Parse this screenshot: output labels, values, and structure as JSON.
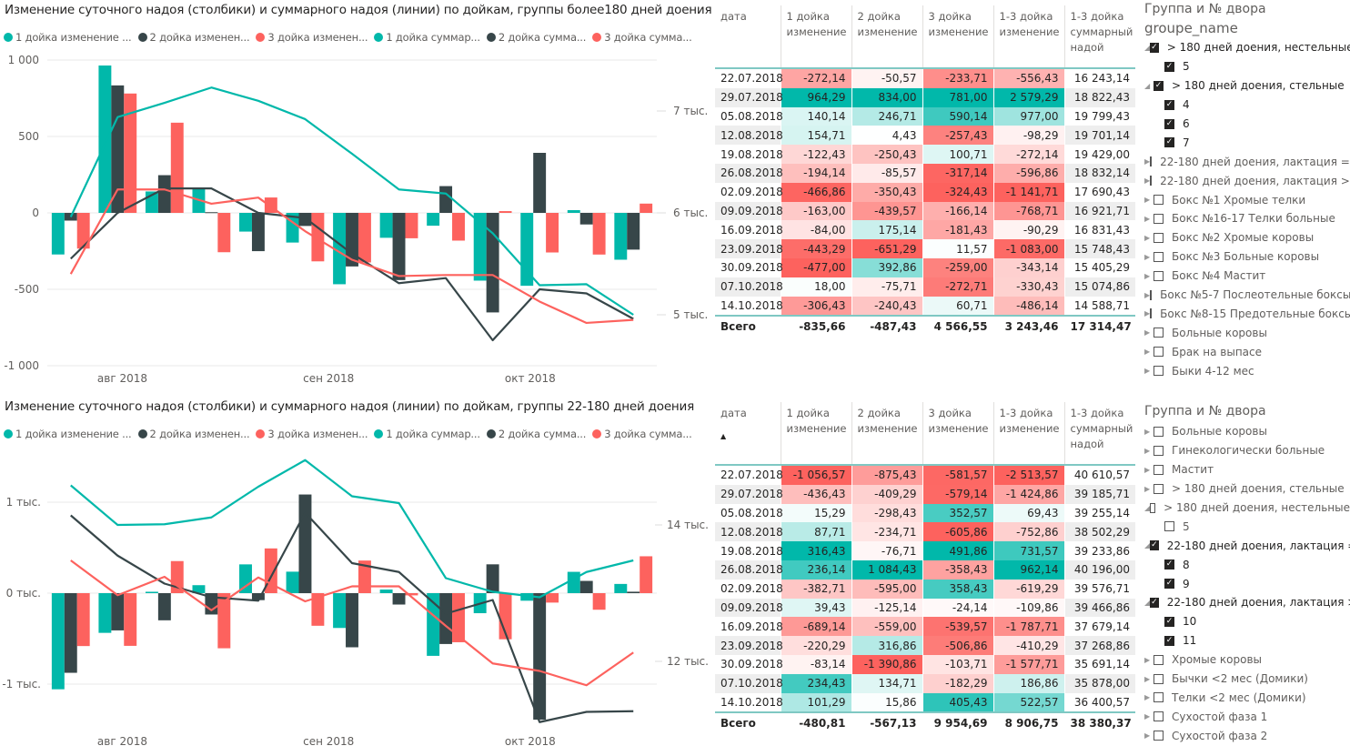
{
  "colors": {
    "teal": "#01b8aa",
    "dark": "#374649",
    "red": "#fd625e",
    "grid": "#eeeeee",
    "axis_text": "#605e5c"
  },
  "legend": [
    {
      "label": "1 дойка изменение ...",
      "color": "#01b8aa"
    },
    {
      "label": "2 дойка изменен...",
      "color": "#374649"
    },
    {
      "label": "3 дойка изменен...",
      "color": "#fd625e"
    },
    {
      "label": "1 дойка суммар...",
      "color": "#01b8aa"
    },
    {
      "label": "2 дойка сумма...",
      "color": "#374649"
    },
    {
      "label": "3 дойка сумма...",
      "color": "#fd625e"
    }
  ],
  "chart_data": [
    {
      "type": "bar",
      "title": "Изменение суточного надоя (столбики) и суммарного надоя (линии) по дойкам, группы более180 дней доения",
      "x": [
        "22.07.2018",
        "29.07.2018",
        "05.08.2018",
        "12.08.2018",
        "19.08.2018",
        "26.08.2018",
        "02.09.2018",
        "09.09.2018",
        "16.09.2018",
        "23.09.2018",
        "30.09.2018",
        "07.10.2018",
        "14.10.2018"
      ],
      "x_tick_labels": [
        {
          "label": "авг 2018",
          "index": 1.6
        },
        {
          "label": "сен 2018",
          "index": 6.0
        },
        {
          "label": "окт 2018",
          "index": 10.3
        }
      ],
      "y_left": {
        "ticks": [
          1000,
          500,
          0,
          -500,
          -1000
        ],
        "tick_labels": [
          "1 000",
          "500",
          "0",
          "-500",
          "-1 000"
        ],
        "range": [
          -1000,
          1000
        ]
      },
      "y_right": {
        "ticks": [
          7000,
          6000,
          5000
        ],
        "tick_labels": [
          "7 тыс.",
          "6 тыс.",
          "5 тыс."
        ],
        "range": [
          4500,
          7500
        ]
      },
      "bar_series": [
        {
          "name": "1 дойка изменение",
          "values": [
            -272.14,
            964.29,
            140.14,
            154.71,
            -122.43,
            -194.14,
            -466.86,
            -163.0,
            -84.0,
            -443.29,
            -477.0,
            18.0,
            -306.43
          ]
        },
        {
          "name": "2 дойка изменение",
          "values": [
            -50.57,
            834.0,
            246.71,
            4.43,
            -250.43,
            -85.57,
            -350.43,
            -439.57,
            175.14,
            -651.29,
            392.86,
            -75.71,
            -240.43
          ]
        },
        {
          "name": "3 дойка изменение",
          "values": [
            -233.71,
            781.0,
            590.14,
            -257.43,
            100.71,
            -317.14,
            -324.43,
            -166.14,
            -181.43,
            11.57,
            -259.0,
            -272.71,
            60.71
          ]
        }
      ],
      "line_series": [
        {
          "name": "1 дойка суммарный",
          "values": [
            5960,
            6940,
            7080,
            7230,
            7100,
            6920,
            6580,
            6230,
            6190,
            5800,
            5290,
            5300,
            5000
          ]
        },
        {
          "name": "2 дойка суммарный",
          "values": [
            5550,
            6000,
            6240,
            6240,
            6000,
            5950,
            5600,
            5310,
            5360,
            4750,
            5250,
            5210,
            4960
          ]
        },
        {
          "name": "3 дойка суммарный",
          "values": [
            5400,
            6230,
            6230,
            6090,
            6150,
            5820,
            5540,
            5380,
            5390,
            5390,
            5130,
            4920,
            4950
          ]
        }
      ]
    },
    {
      "type": "bar",
      "title": "Изменение суточного надоя (столбики) и суммарного надоя (линии) по дойкам, группы 22-180 дней доения",
      "x": [
        "22.07.2018",
        "29.07.2018",
        "05.08.2018",
        "12.08.2018",
        "19.08.2018",
        "26.08.2018",
        "02.09.2018",
        "09.09.2018",
        "16.09.2018",
        "23.09.2018",
        "30.09.2018",
        "07.10.2018",
        "14.10.2018"
      ],
      "x_tick_labels": [
        {
          "label": "авг 2018",
          "index": 1.6
        },
        {
          "label": "сен 2018",
          "index": 6.0
        },
        {
          "label": "окт 2018",
          "index": 10.3
        }
      ],
      "y_left": {
        "ticks": [
          1000,
          0,
          -1000
        ],
        "tick_labels": [
          "1 тыс.",
          "0 тыс.",
          "-1 тыс."
        ],
        "range": [
          -1400,
          1400
        ]
      },
      "y_right": {
        "ticks": [
          14000,
          12000
        ],
        "tick_labels": [
          "14 тыс.",
          "12 тыс."
        ],
        "range": [
          10800,
          15400
        ]
      },
      "bar_series": [
        {
          "name": "1 дойка изменение",
          "values": [
            -1056.57,
            -436.43,
            15.29,
            87.71,
            316.43,
            236.14,
            -382.71,
            39.43,
            -689.14,
            -220.29,
            -83.14,
            234.43,
            101.29
          ]
        },
        {
          "name": "2 дойка изменение",
          "values": [
            -875.43,
            -409.29,
            -298.43,
            -234.71,
            -76.71,
            1084.43,
            -595.0,
            -125.14,
            -559.0,
            316.86,
            -1390.86,
            134.71,
            15.86
          ]
        },
        {
          "name": "3 дойка изменение",
          "values": [
            -581.57,
            -579.14,
            352.57,
            -605.86,
            491.86,
            -358.43,
            358.43,
            -24.14,
            -539.57,
            -506.86,
            -103.71,
            -182.29,
            405.43
          ]
        }
      ],
      "line_series": [
        {
          "name": "1 дойка суммарный",
          "values": [
            14580,
            14000,
            14010,
            14110,
            14560,
            14950,
            14420,
            14320,
            13220,
            13020,
            12940,
            13310,
            13480
          ]
        },
        {
          "name": "2 дойка суммарный",
          "values": [
            14140,
            13550,
            13140,
            12940,
            12890,
            14180,
            13440,
            13310,
            12700,
            12900,
            11110,
            11260,
            11270
          ]
        },
        {
          "name": "3 дойка суммарный",
          "values": [
            13480,
            12970,
            13240,
            12750,
            13230,
            12880,
            13100,
            13100,
            12520,
            11970,
            11860,
            11650,
            12130
          ]
        }
      ]
    }
  ],
  "tables": [
    {
      "headers": [
        "дата",
        "1 дойка изменение",
        "2 дойка изменение",
        "3 дойка изменение",
        "1-3 дойка изменение",
        "1-3 дойка суммарный надой"
      ],
      "sort_indicator": false,
      "rows": [
        [
          "22.07.2018",
          "-272,14",
          "-50,57",
          "-233,71",
          "-556,43",
          "16 243,14"
        ],
        [
          "29.07.2018",
          "964,29",
          "834,00",
          "781,00",
          "2 579,29",
          "18 822,43"
        ],
        [
          "05.08.2018",
          "140,14",
          "246,71",
          "590,14",
          "977,00",
          "19 799,43"
        ],
        [
          "12.08.2018",
          "154,71",
          "4,43",
          "-257,43",
          "-98,29",
          "19 701,14"
        ],
        [
          "19.08.2018",
          "-122,43",
          "-250,43",
          "100,71",
          "-272,14",
          "19 429,00"
        ],
        [
          "26.08.2018",
          "-194,14",
          "-85,57",
          "-317,14",
          "-596,86",
          "18 832,14"
        ],
        [
          "02.09.2018",
          "-466,86",
          "-350,43",
          "-324,43",
          "-1 141,71",
          "17 690,43"
        ],
        [
          "09.09.2018",
          "-163,00",
          "-439,57",
          "-166,14",
          "-768,71",
          "16 921,71"
        ],
        [
          "16.09.2018",
          "-84,00",
          "175,14",
          "-181,43",
          "-90,29",
          "16 831,43"
        ],
        [
          "23.09.2018",
          "-443,29",
          "-651,29",
          "11,57",
          "-1 083,00",
          "15 748,43"
        ],
        [
          "30.09.2018",
          "-477,00",
          "392,86",
          "-259,00",
          "-343,14",
          "15 405,29"
        ],
        [
          "07.10.2018",
          "18,00",
          "-75,71",
          "-272,71",
          "-330,43",
          "15 074,86"
        ],
        [
          "14.10.2018",
          "-306,43",
          "-240,43",
          "60,71",
          "-486,14",
          "14 588,71"
        ]
      ],
      "total": [
        "Всего",
        "-835,66",
        "-487,43",
        "4 566,55",
        "3 243,46",
        "17 314,47"
      ]
    },
    {
      "headers": [
        "дата",
        "1 дойка изменение",
        "2 дойка изменение",
        "3 дойка изменение",
        "1-3 дойка изменение",
        "1-3 дойка суммарный надой"
      ],
      "sort_indicator": true,
      "rows": [
        [
          "22.07.2018",
          "-1 056,57",
          "-875,43",
          "-581,57",
          "-2 513,57",
          "40 610,57"
        ],
        [
          "29.07.2018",
          "-436,43",
          "-409,29",
          "-579,14",
          "-1 424,86",
          "39 185,71"
        ],
        [
          "05.08.2018",
          "15,29",
          "-298,43",
          "352,57",
          "69,43",
          "39 255,14"
        ],
        [
          "12.08.2018",
          "87,71",
          "-234,71",
          "-605,86",
          "-752,86",
          "38 502,29"
        ],
        [
          "19.08.2018",
          "316,43",
          "-76,71",
          "491,86",
          "731,57",
          "39 233,86"
        ],
        [
          "26.08.2018",
          "236,14",
          "1 084,43",
          "-358,43",
          "962,14",
          "40 196,00"
        ],
        [
          "02.09.2018",
          "-382,71",
          "-595,00",
          "358,43",
          "-619,29",
          "39 576,71"
        ],
        [
          "09.09.2018",
          "39,43",
          "-125,14",
          "-24,14",
          "-109,86",
          "39 466,86"
        ],
        [
          "16.09.2018",
          "-689,14",
          "-559,00",
          "-539,57",
          "-1 787,71",
          "37 679,14"
        ],
        [
          "23.09.2018",
          "-220,29",
          "316,86",
          "-506,86",
          "-410,29",
          "37 268,86"
        ],
        [
          "30.09.2018",
          "-83,14",
          "-1 390,86",
          "-103,71",
          "-1 577,71",
          "35 691,14"
        ],
        [
          "07.10.2018",
          "234,43",
          "134,71",
          "-182,29",
          "186,86",
          "35 878,00"
        ],
        [
          "14.10.2018",
          "101,29",
          "15,86",
          "405,43",
          "522,57",
          "36 400,57"
        ]
      ],
      "total": [
        "Всего",
        "-480,81",
        "-567,13",
        "9 954,69",
        "8 906,75",
        "38 380,37"
      ]
    }
  ],
  "slicers": [
    {
      "title": "Группа и № двора",
      "field": "groupe_name",
      "items": [
        {
          "label": "> 180 дней доения, нестельные",
          "level": 0,
          "checked": true,
          "expanded": true
        },
        {
          "label": "5",
          "level": 1,
          "checked": true
        },
        {
          "label": "> 180 дней доения, стельные",
          "level": 0,
          "checked": true,
          "expanded": true
        },
        {
          "label": "4",
          "level": 1,
          "checked": true
        },
        {
          "label": "6",
          "level": 1,
          "checked": true
        },
        {
          "label": "7",
          "level": 1,
          "checked": true
        },
        {
          "label": "22-180 дней доения, лактация = 1",
          "level": 0,
          "checked": false,
          "expanded": false
        },
        {
          "label": "22-180 дней доения, лактация > 1",
          "level": 0,
          "checked": false,
          "expanded": false
        },
        {
          "label": "Бокс №1 Хромые телки",
          "level": 0,
          "checked": false,
          "expanded": false
        },
        {
          "label": "Бокс №16-17 Телки больные",
          "level": 0,
          "checked": false,
          "expanded": false
        },
        {
          "label": "Бокс №2 Хромые коровы",
          "level": 0,
          "checked": false,
          "expanded": false
        },
        {
          "label": "Бокс №3 Больные коровы",
          "level": 0,
          "checked": false,
          "expanded": false
        },
        {
          "label": "Бокс №4 Мастит",
          "level": 0,
          "checked": false,
          "expanded": false
        },
        {
          "label": "Бокс №5-7 Послеотельные боксы",
          "level": 0,
          "checked": false,
          "expanded": false
        },
        {
          "label": "Бокс №8-15 Предотельные боксы",
          "level": 0,
          "checked": false,
          "expanded": false
        },
        {
          "label": "Больные коровы",
          "level": 0,
          "checked": false,
          "expanded": false
        },
        {
          "label": "Брак на выпасе",
          "level": 0,
          "checked": false,
          "expanded": false
        },
        {
          "label": "Быки 4-12 мес",
          "level": 0,
          "checked": false,
          "expanded": false
        }
      ]
    },
    {
      "title": "Группа и № двора",
      "field": "",
      "items": [
        {
          "label": "Больные коровы",
          "level": 0,
          "checked": false,
          "expanded": false
        },
        {
          "label": "Гинекологически больные",
          "level": 0,
          "checked": false,
          "expanded": false
        },
        {
          "label": "Мастит",
          "level": 0,
          "checked": false,
          "expanded": false
        },
        {
          "label": "> 180 дней доения, стельные",
          "level": 0,
          "checked": false,
          "expanded": false
        },
        {
          "label": "> 180 дней доения, нестельные",
          "level": 0,
          "checked": false,
          "expanded": true
        },
        {
          "label": "5",
          "level": 1,
          "checked": false
        },
        {
          "label": "22-180 дней доения, лактация = 1",
          "level": 0,
          "checked": true,
          "expanded": true
        },
        {
          "label": "8",
          "level": 1,
          "checked": true
        },
        {
          "label": "9",
          "level": 1,
          "checked": true
        },
        {
          "label": "22-180 дней доения, лактация > 1",
          "level": 0,
          "checked": true,
          "expanded": true
        },
        {
          "label": "10",
          "level": 1,
          "checked": true
        },
        {
          "label": "11",
          "level": 1,
          "checked": true
        },
        {
          "label": "Хромые коровы",
          "level": 0,
          "checked": false,
          "expanded": false
        },
        {
          "label": "Бычки <2 мес (Домики)",
          "level": 0,
          "checked": false,
          "expanded": false
        },
        {
          "label": "Телки <2 мес (Домики)",
          "level": 0,
          "checked": false,
          "expanded": false
        },
        {
          "label": "Сухостой фаза 1",
          "level": 0,
          "checked": false,
          "expanded": false
        },
        {
          "label": "Сухостой фаза 2",
          "level": 0,
          "checked": false,
          "expanded": false
        }
      ]
    }
  ]
}
